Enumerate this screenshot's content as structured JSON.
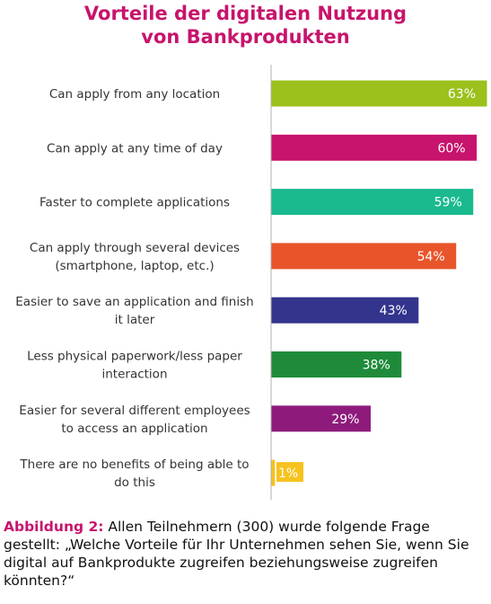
{
  "title_line1": "Vorteile der digitalen Nutzung",
  "title_line2": "von Bankprodukten",
  "caption_label": "Abbildung 2:",
  "caption_text": "Allen Teilnehmern (300) wurde folgende Frage gestellt: „Welche Vorteile für Ihr Unternehmen sehen Sie, wenn Sie digital auf Bankprodukte zugreifen beziehungsweise zugreifen könnten?“",
  "chart_data": {
    "type": "bar",
    "orientation": "horizontal",
    "xlim": [
      0,
      63
    ],
    "categories": [
      [
        "Can apply from any location"
      ],
      [
        "Can apply at any time of day"
      ],
      [
        "Faster to complete applications"
      ],
      [
        "Can apply through several devices",
        "(smartphone, laptop, etc.)"
      ],
      [
        "Easier to save an application and finish",
        "it later"
      ],
      [
        "Less physical paperwork/less paper",
        "interaction"
      ],
      [
        "Easier for several different employees",
        "to access an application"
      ],
      [
        "There are no benefits of being able to",
        "do this"
      ]
    ],
    "values": [
      63,
      60,
      59,
      54,
      43,
      38,
      29,
      1
    ],
    "value_labels": [
      "63%",
      "60%",
      "59%",
      "54%",
      "43%",
      "38%",
      "29%",
      "1%"
    ],
    "colors": [
      "#9cc01c",
      "#c7146c",
      "#1ab98e",
      "#e8552a",
      "#33348c",
      "#1f8b3a",
      "#8e1b7c",
      "#f6c21d"
    ]
  }
}
